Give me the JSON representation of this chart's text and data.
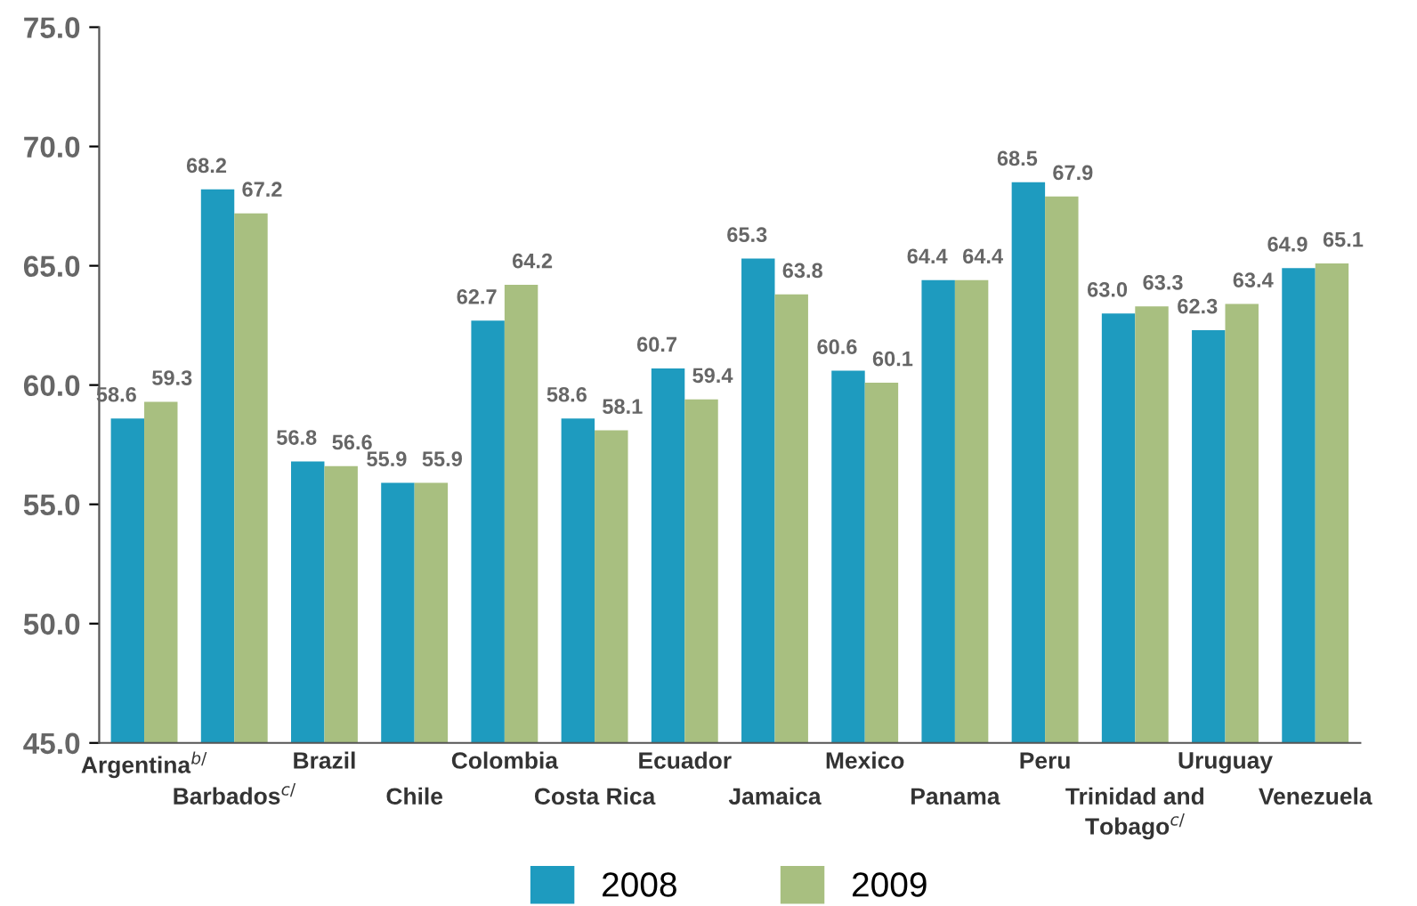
{
  "chart_data": {
    "type": "bar",
    "categories": [
      "Argentina$^{b/}$",
      "Barbados$^{c/}$",
      "Brazil",
      "Chile",
      "Colombia",
      "Costa Rica",
      "Ecuador",
      "Jamaica",
      "Mexico",
      "Panama",
      "Peru",
      "Trinidad and\nTobago$^{c/}$",
      "Uruguay",
      "Venezuela"
    ],
    "series": [
      {
        "name": "2008",
        "color": "#1e9bbf",
        "values": [
          58.6,
          68.2,
          56.8,
          55.9,
          62.7,
          58.6,
          60.7,
          65.3,
          60.6,
          64.4,
          68.5,
          63.0,
          62.3,
          64.9
        ],
        "value_labels": [
          "58.6",
          "68.2",
          "56.8",
          "55.9",
          "62.7",
          "58.6",
          "60.7",
          "65.3",
          "60.6",
          "64.4",
          "68.5",
          "63.0",
          "62.3",
          "64.9"
        ]
      },
      {
        "name": "2009",
        "color": "#a8bf80",
        "values": [
          59.3,
          67.2,
          56.6,
          55.9,
          64.2,
          58.1,
          59.4,
          63.8,
          60.1,
          64.4,
          67.9,
          63.3,
          63.4,
          65.1
        ],
        "value_labels": [
          "59.3",
          "67.2",
          "56.6",
          "55.9",
          "64.2",
          "58.1",
          "59.4",
          "63.8",
          "60.1",
          "64.4",
          "67.9",
          "63.3",
          "63.4",
          "65.1"
        ]
      }
    ],
    "ylim": [
      45,
      75
    ],
    "yticks": [
      {
        "value": 45,
        "label": "45.0"
      },
      {
        "value": 50,
        "label": "50.0"
      },
      {
        "value": 55,
        "label": "55.0"
      },
      {
        "value": 60,
        "label": "60.0"
      },
      {
        "value": 65,
        "label": "65.0"
      },
      {
        "value": 70,
        "label": "70.0"
      },
      {
        "value": 75,
        "label": "75.0"
      }
    ],
    "grid": false,
    "legend": "bottom"
  }
}
